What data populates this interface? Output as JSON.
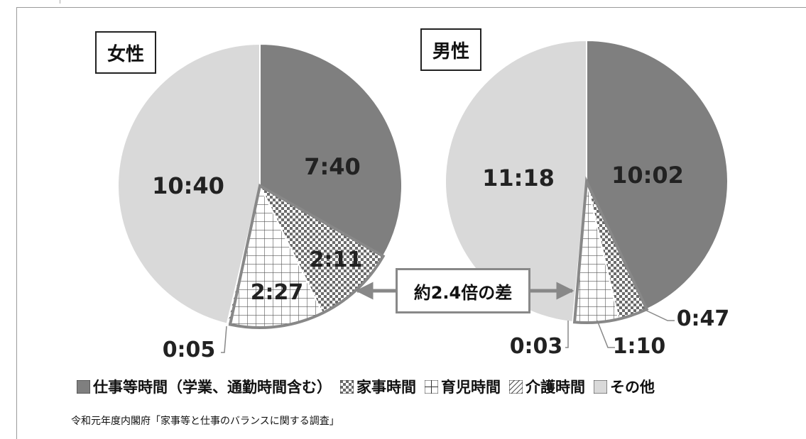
{
  "chart_data": [
    {
      "type": "pie",
      "title": "女性",
      "categories": [
        "仕事等時間（学業、通勤時間含む）",
        "家事時間",
        "育児時間",
        "介護時間",
        "その他"
      ],
      "values": [
        7.667,
        2.183,
        2.45,
        0.083,
        10.667
      ],
      "labels": [
        "7:40",
        "2:11",
        "2:27",
        "0:05",
        "10:40"
      ],
      "start": "12 o'clock",
      "direction": "clockwise"
    },
    {
      "type": "pie",
      "title": "男性",
      "categories": [
        "仕事等時間（学業、通勤時間含む）",
        "家事時間",
        "育児時間",
        "介護時間",
        "その他"
      ],
      "values": [
        10.033,
        0.783,
        1.167,
        0.05,
        11.3
      ],
      "labels": [
        "10:02",
        "0:47",
        "1:10",
        "0:03",
        "11:18"
      ],
      "start": "12 o'clock",
      "direction": "clockwise"
    }
  ],
  "legend": [
    {
      "label": "仕事等時間（学業、通勤時間含む）",
      "pattern": "solid-dark"
    },
    {
      "label": "家事時間",
      "pattern": "checker"
    },
    {
      "label": "育児時間",
      "pattern": "grid"
    },
    {
      "label": "介護時間",
      "pattern": "hatch"
    },
    {
      "label": "その他",
      "pattern": "solid-light"
    }
  ],
  "annotation": "約2.4倍の差",
  "source": "令和元年度内閣府「家事等と仕事のバランスに関する調査」",
  "colors": {
    "work": "#7f7f7f",
    "other": "#d9d9d9",
    "outline": "#ffffff",
    "emphasis": "#888888"
  }
}
